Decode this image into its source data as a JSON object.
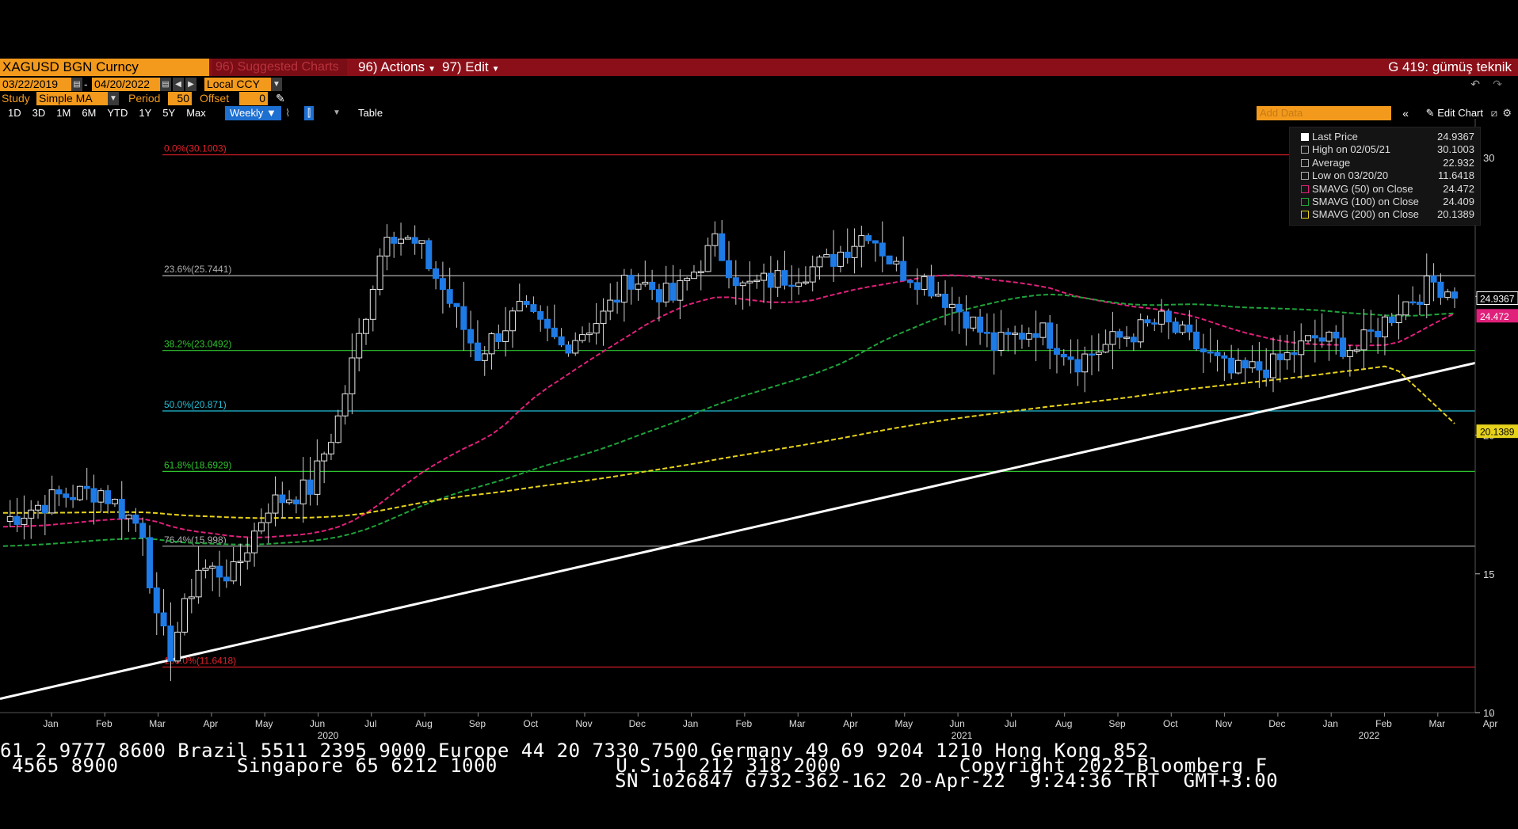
{
  "header": {
    "security": "XAGUSD BGN Curncy",
    "suggested": "96) Suggested Charts",
    "actions": "96) Actions",
    "edit": "97) Edit",
    "title": "G 419: gümüş teknik"
  },
  "controls": {
    "start_date": "03/22/2019",
    "end_date": "04/20/2022",
    "currency": "Local CCY",
    "study_label": "Study",
    "study_value": "Simple MA",
    "period_label": "Period",
    "period_value": "50",
    "offset_label": "Offset",
    "offset_value": "0",
    "ranges": [
      "1D",
      "3D",
      "1M",
      "6M",
      "YTD",
      "1Y",
      "5Y",
      "Max"
    ],
    "frequency": "Weekly",
    "table": "Table",
    "add_data_placeholder": "Add Data",
    "edit_chart": "Edit Chart"
  },
  "legend": {
    "rows": [
      {
        "label": "Last Price",
        "value": "24.9367",
        "color": "#ffffff"
      },
      {
        "label": "High on 02/05/21",
        "value": "30.1003",
        "color": "#aaaaaa"
      },
      {
        "label": "Average",
        "value": "22.932",
        "color": "#aaaaaa"
      },
      {
        "label": "Low on 03/20/20",
        "value": "11.6418",
        "color": "#aaaaaa"
      },
      {
        "label": "SMAVG (50)  on Close",
        "value": "24.472",
        "color": "#e0207a"
      },
      {
        "label": "SMAVG (100)  on Close",
        "value": "24.409",
        "color": "#1fa33a"
      },
      {
        "label": "SMAVG (200)  on Close",
        "value": "20.1389",
        "color": "#e6d21c"
      }
    ]
  },
  "chart_data": {
    "type": "candlestick",
    "y_range": [
      10,
      31.4
    ],
    "y_ticks": [
      10,
      15,
      20,
      25,
      30
    ],
    "x_months": [
      "Jan",
      "Feb",
      "Mar",
      "Apr",
      "May",
      "Jun",
      "Jul",
      "Aug",
      "Sep",
      "Oct",
      "Nov",
      "Dec",
      "Jan",
      "Feb",
      "Mar",
      "Apr",
      "May",
      "Jun",
      "Jul",
      "Aug",
      "Sep",
      "Oct",
      "Nov",
      "Dec",
      "Jan",
      "Feb",
      "Mar",
      "Apr"
    ],
    "x_years": [
      "2020",
      "2021",
      "2022"
    ],
    "fib_levels": [
      {
        "label": "0.0%(30.1003)",
        "value": 30.1003,
        "color": "#e0202a"
      },
      {
        "label": "23.6%(25.7441)",
        "value": 25.7441,
        "color": "#b0b0b0"
      },
      {
        "label": "38.2%(23.0492)",
        "value": 23.0492,
        "color": "#2ec32e"
      },
      {
        "label": "50.0%(20.871)",
        "value": 20.871,
        "color": "#22c0d8"
      },
      {
        "label": "61.8%(18.6929)",
        "value": 18.6929,
        "color": "#2ec32e"
      },
      {
        "label": "76.4%(15.998)",
        "value": 15.998,
        "color": "#b0b0b0"
      },
      {
        "label": "100.0%(11.6418)",
        "value": 11.6418,
        "color": "#e0202a"
      }
    ],
    "last_price": 24.9367,
    "sma50_last": 24.472,
    "sma200_last": 20.1389,
    "price_labels": [
      "24.9367",
      "24.472",
      "20.1389"
    ]
  },
  "footer": {
    "line1": "61 2 9777 8600 Brazil 5511 2395 9000 Europe 44 20 7330 7500 Germany 49 69 9204 1210 Hong Kong 852",
    "line2": " 4565 8900          Singapore 65 6212 1000          U.S. 1 212 318 2000          Copyright 2022 Bloomberg F",
    "line3": "SN 1026847 G732-362-162 20-Apr-22  9:24:36 TRT  GMT+3:00"
  }
}
